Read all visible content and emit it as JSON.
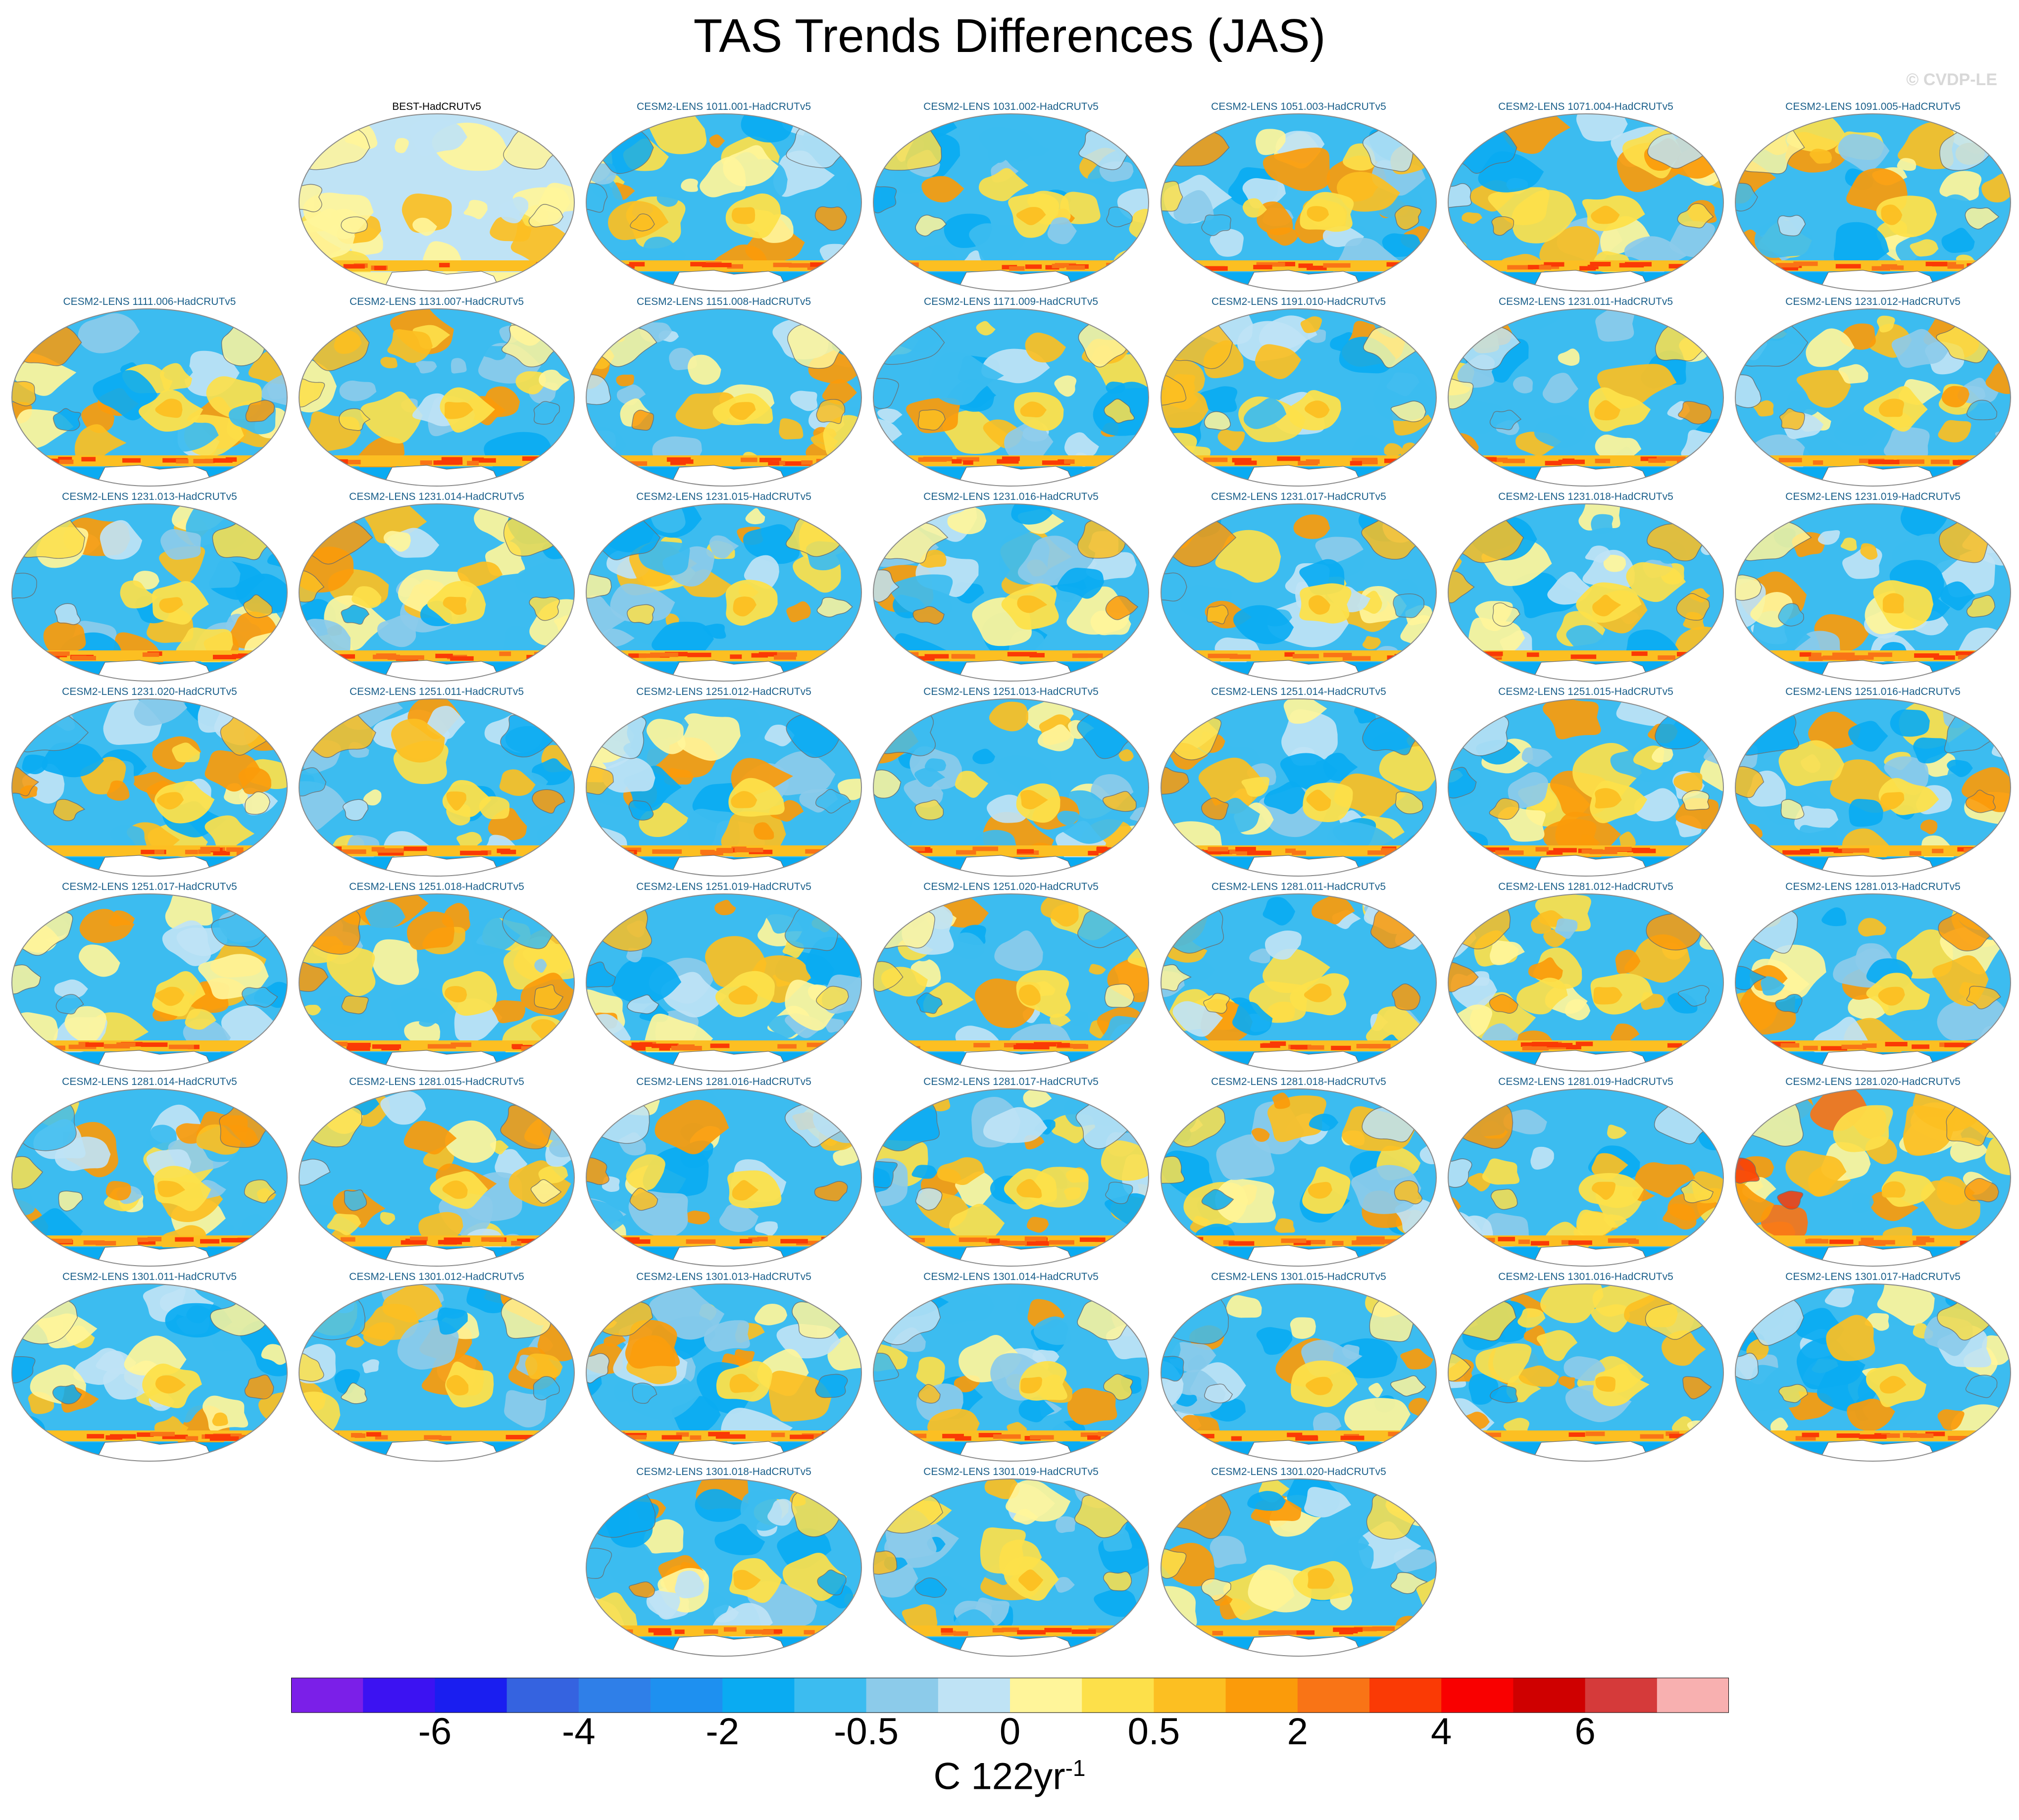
{
  "title": "TAS Trends Differences (JAS)",
  "watermark": "© CVDP-LE",
  "chart_data": {
    "type": "heatmap",
    "description_kind": "grid of global map panels (Hammer projection) showing surface air temperature trend differences",
    "title": "TAS Trends Differences (JAS)",
    "panels": [
      {
        "label": "BEST-HadCRUTv5",
        "style": "obs"
      },
      {
        "label": "CESM2-LENS 1011.001-HadCRUTv5"
      },
      {
        "label": "CESM2-LENS 1031.002-HadCRUTv5"
      },
      {
        "label": "CESM2-LENS 1051.003-HadCRUTv5"
      },
      {
        "label": "CESM2-LENS 1071.004-HadCRUTv5"
      },
      {
        "label": "CESM2-LENS 1091.005-HadCRUTv5"
      },
      {
        "label": "CESM2-LENS 1111.006-HadCRUTv5"
      },
      {
        "label": "CESM2-LENS 1131.007-HadCRUTv5"
      },
      {
        "label": "CESM2-LENS 1151.008-HadCRUTv5"
      },
      {
        "label": "CESM2-LENS 1171.009-HadCRUTv5"
      },
      {
        "label": "CESM2-LENS 1191.010-HadCRUTv5"
      },
      {
        "label": "CESM2-LENS 1231.011-HadCRUTv5"
      },
      {
        "label": "CESM2-LENS 1231.012-HadCRUTv5"
      },
      {
        "label": "CESM2-LENS 1231.013-HadCRUTv5"
      },
      {
        "label": "CESM2-LENS 1231.014-HadCRUTv5"
      },
      {
        "label": "CESM2-LENS 1231.015-HadCRUTv5"
      },
      {
        "label": "CESM2-LENS 1231.016-HadCRUTv5"
      },
      {
        "label": "CESM2-LENS 1231.017-HadCRUTv5"
      },
      {
        "label": "CESM2-LENS 1231.018-HadCRUTv5"
      },
      {
        "label": "CESM2-LENS 1231.019-HadCRUTv5"
      },
      {
        "label": "CESM2-LENS 1231.020-HadCRUTv5"
      },
      {
        "label": "CESM2-LENS 1251.011-HadCRUTv5"
      },
      {
        "label": "CESM2-LENS 1251.012-HadCRUTv5"
      },
      {
        "label": "CESM2-LENS 1251.013-HadCRUTv5"
      },
      {
        "label": "CESM2-LENS 1251.014-HadCRUTv5"
      },
      {
        "label": "CESM2-LENS 1251.015-HadCRUTv5"
      },
      {
        "label": "CESM2-LENS 1251.016-HadCRUTv5"
      },
      {
        "label": "CESM2-LENS 1251.017-HadCRUTv5"
      },
      {
        "label": "CESM2-LENS 1251.018-HadCRUTv5"
      },
      {
        "label": "CESM2-LENS 1251.019-HadCRUTv5"
      },
      {
        "label": "CESM2-LENS 1251.020-HadCRUTv5"
      },
      {
        "label": "CESM2-LENS 1281.011-HadCRUTv5"
      },
      {
        "label": "CESM2-LENS 1281.012-HadCRUTv5"
      },
      {
        "label": "CESM2-LENS 1281.013-HadCRUTv5"
      },
      {
        "label": "CESM2-LENS 1281.014-HadCRUTv5"
      },
      {
        "label": "CESM2-LENS 1281.015-HadCRUTv5"
      },
      {
        "label": "CESM2-LENS 1281.016-HadCRUTv5"
      },
      {
        "label": "CESM2-LENS 1281.017-HadCRUTv5"
      },
      {
        "label": "CESM2-LENS 1281.018-HadCRUTv5"
      },
      {
        "label": "CESM2-LENS 1281.019-HadCRUTv5"
      },
      {
        "label": "CESM2-LENS 1281.020-HadCRUTv5",
        "style": "warm"
      },
      {
        "label": "CESM2-LENS 1301.011-HadCRUTv5"
      },
      {
        "label": "CESM2-LENS 1301.012-HadCRUTv5"
      },
      {
        "label": "CESM2-LENS 1301.013-HadCRUTv5"
      },
      {
        "label": "CESM2-LENS 1301.014-HadCRUTv5"
      },
      {
        "label": "CESM2-LENS 1301.015-HadCRUTv5"
      },
      {
        "label": "CESM2-LENS 1301.016-HadCRUTv5"
      },
      {
        "label": "CESM2-LENS 1301.017-HadCRUTv5"
      },
      {
        "label": "CESM2-LENS 1301.018-HadCRUTv5"
      },
      {
        "label": "CESM2-LENS 1301.019-HadCRUTv5"
      },
      {
        "label": "CESM2-LENS 1301.020-HadCRUTv5"
      }
    ],
    "colorbar": {
      "colors": [
        "#7b1fe8",
        "#3c12f2",
        "#1a1ef0",
        "#3563e0",
        "#2f7fe8",
        "#1e90f0",
        "#0aabf2",
        "#3cbcf0",
        "#8ccbea",
        "#bfe3f5",
        "#fff59a",
        "#fde04a",
        "#fcbf22",
        "#fb9b0a",
        "#f97416",
        "#fa3a05",
        "#f90000",
        "#cf0000",
        "#d53a3a",
        "#f8b0b0"
      ],
      "tick_labels": [
        "-6",
        "-4",
        "-2",
        "-0.5",
        "0",
        "0.5",
        "2",
        "4",
        "6"
      ],
      "units": "C 122yr",
      "units_exponent": "-1"
    },
    "colors": {
      "obs_label": "#000000",
      "model_label": "#1a5f8a",
      "ocean_base": "#3cbcf0",
      "obs_base": "#bfe3f5",
      "coast": "#6b6b6b"
    }
  }
}
